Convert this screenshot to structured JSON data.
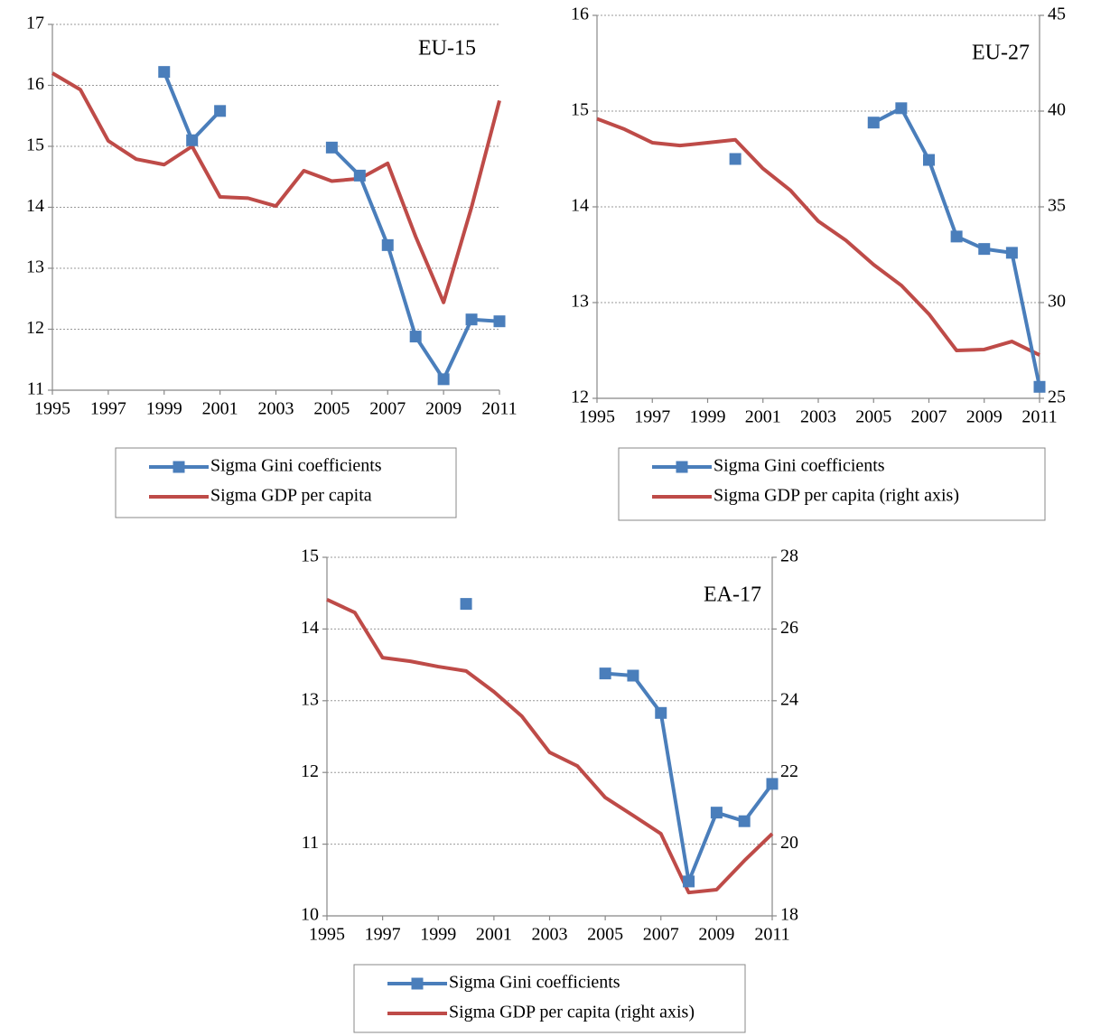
{
  "chart_data": [
    {
      "type": "line",
      "title": "EU-15",
      "x": [
        1995,
        1996,
        1997,
        1998,
        1999,
        2000,
        2001,
        2002,
        2003,
        2004,
        2005,
        2006,
        2007,
        2008,
        2009,
        2010,
        2011
      ],
      "xlim": [
        1995,
        2011
      ],
      "xticks": [
        1995,
        1997,
        1999,
        2001,
        2003,
        2005,
        2007,
        2009,
        2011
      ],
      "ylim": [
        11,
        17
      ],
      "yticks": [
        11,
        12,
        13,
        14,
        15,
        16,
        17
      ],
      "grid": true,
      "series": [
        {
          "name": "Sigma Gini coefficients",
          "color": "#4a7ebb",
          "marker": "square",
          "values": [
            null,
            null,
            null,
            null,
            16.22,
            15.1,
            15.58,
            null,
            null,
            null,
            14.98,
            14.52,
            13.38,
            11.88,
            11.18,
            12.16,
            12.13
          ]
        },
        {
          "name": "Sigma GDP per capita",
          "color": "#be4b48",
          "values": [
            16.2,
            15.93,
            15.09,
            14.79,
            14.7,
            15.0,
            14.17,
            14.15,
            14.02,
            14.6,
            14.43,
            14.47,
            14.72,
            13.52,
            12.44,
            14.0,
            15.75
          ]
        }
      ]
    },
    {
      "type": "line",
      "title": "EU-27",
      "x": [
        1995,
        1996,
        1997,
        1998,
        1999,
        2000,
        2001,
        2002,
        2003,
        2004,
        2005,
        2006,
        2007,
        2008,
        2009,
        2010,
        2011
      ],
      "xlim": [
        1995,
        2011
      ],
      "xticks": [
        1995,
        1997,
        1999,
        2001,
        2003,
        2005,
        2007,
        2009,
        2011
      ],
      "ylim": [
        12,
        16
      ],
      "yticks": [
        12,
        13,
        14,
        15,
        16
      ],
      "y2lim": [
        25,
        45
      ],
      "y2ticks": [
        25,
        30,
        35,
        40,
        45
      ],
      "grid": true,
      "series": [
        {
          "name": "Sigma Gini coefficients",
          "color": "#4a7ebb",
          "marker": "square",
          "values": [
            null,
            null,
            null,
            null,
            null,
            14.5,
            null,
            null,
            null,
            null,
            14.88,
            15.03,
            14.49,
            13.69,
            13.56,
            13.52,
            12.12
          ]
        },
        {
          "name": "Sigma GDP per capita (right axis)",
          "color": "#be4b48",
          "axis": "y2",
          "values": [
            39.6,
            39.05,
            38.35,
            38.2,
            38.35,
            38.5,
            37.0,
            35.85,
            34.25,
            33.25,
            31.98,
            30.9,
            29.4,
            27.5,
            27.55,
            27.97,
            27.26
          ]
        }
      ]
    },
    {
      "type": "line",
      "title": "EA-17",
      "x": [
        1995,
        1996,
        1997,
        1998,
        1999,
        2000,
        2001,
        2002,
        2003,
        2004,
        2005,
        2006,
        2007,
        2008,
        2009,
        2010,
        2011
      ],
      "xlim": [
        1995,
        2011
      ],
      "xticks": [
        1995,
        1997,
        1999,
        2001,
        2003,
        2005,
        2007,
        2009,
        2011
      ],
      "ylim": [
        10,
        15
      ],
      "yticks": [
        10,
        11,
        12,
        13,
        14,
        15
      ],
      "y2lim": [
        18,
        28
      ],
      "y2ticks": [
        18,
        20,
        22,
        24,
        26,
        28
      ],
      "grid": true,
      "series": [
        {
          "name": "Sigma Gini coefficients",
          "color": "#4a7ebb",
          "marker": "square",
          "values": [
            null,
            null,
            null,
            null,
            null,
            14.35,
            null,
            null,
            null,
            null,
            13.38,
            13.35,
            12.83,
            10.48,
            11.44,
            11.32,
            11.84
          ]
        },
        {
          "name": "Sigma GDP per capita (right axis)",
          "color": "#be4b48",
          "axis": "y2",
          "values": [
            26.82,
            26.46,
            25.2,
            25.1,
            24.95,
            24.83,
            24.25,
            23.57,
            22.56,
            22.18,
            21.3,
            20.8,
            20.29,
            18.65,
            18.73,
            19.54,
            20.29
          ]
        }
      ]
    }
  ]
}
